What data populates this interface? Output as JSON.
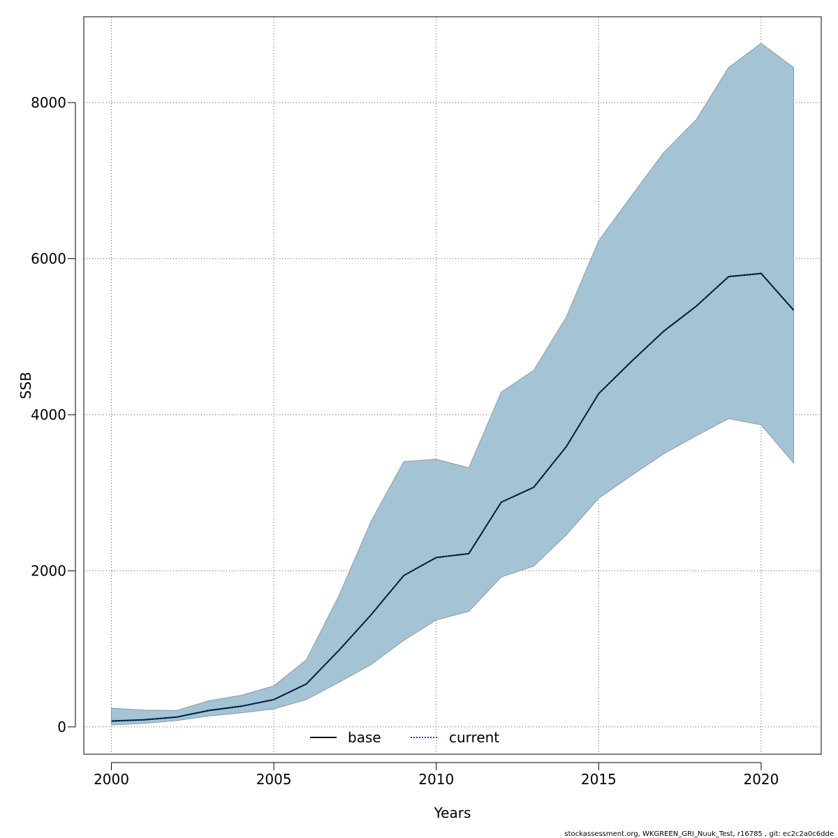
{
  "chart_data": {
    "type": "area",
    "xlabel": "Years",
    "ylabel": "SSB",
    "xlim": [
      1999.15,
      2021.85
    ],
    "ylim": [
      -350,
      9100
    ],
    "x_ticks": [
      2000,
      2005,
      2010,
      2015,
      2020
    ],
    "y_ticks": [
      0,
      2000,
      4000,
      6000,
      8000
    ],
    "grid": true,
    "legend_position": "bottom-center",
    "band_color": "#a4c4d5",
    "band_edge_color": "#8a9aa2",
    "x": [
      2000,
      2001,
      2002,
      2003,
      2004,
      2005,
      2006,
      2007,
      2008,
      2009,
      2010,
      2011,
      2012,
      2013,
      2014,
      2015,
      2016,
      2017,
      2018,
      2019,
      2020,
      2021
    ],
    "band": {
      "upper": [
        240,
        215,
        210,
        335,
        405,
        525,
        860,
        1680,
        2640,
        3400,
        3430,
        3320,
        4290,
        4570,
        5250,
        6230,
        6800,
        7360,
        7780,
        8450,
        8760,
        8450
      ],
      "lower": [
        25,
        45,
        80,
        140,
        180,
        230,
        350,
        570,
        800,
        1110,
        1370,
        1480,
        1920,
        2060,
        2460,
        2930,
        3220,
        3500,
        3730,
        3950,
        3870,
        3380
      ]
    },
    "series": [
      {
        "name": "base",
        "color": "#000000",
        "style": "solid",
        "values": [
          75,
          90,
          125,
          210,
          265,
          350,
          550,
          980,
          1440,
          1940,
          2170,
          2220,
          2880,
          3070,
          3590,
          4270,
          4680,
          5070,
          5390,
          5770,
          5810,
          5340
        ]
      },
      {
        "name": "current",
        "color": "#00468b",
        "style": "dotted",
        "values": [
          75,
          90,
          125,
          210,
          265,
          350,
          550,
          980,
          1440,
          1940,
          2170,
          2220,
          2880,
          3070,
          3590,
          4270,
          4680,
          5070,
          5390,
          5770,
          5810,
          5340
        ]
      }
    ],
    "footer": "stockassessment.org, WKGREEN_GRI_Nuuk_Test, r16785 , git: ec2c2a0c6dde"
  }
}
